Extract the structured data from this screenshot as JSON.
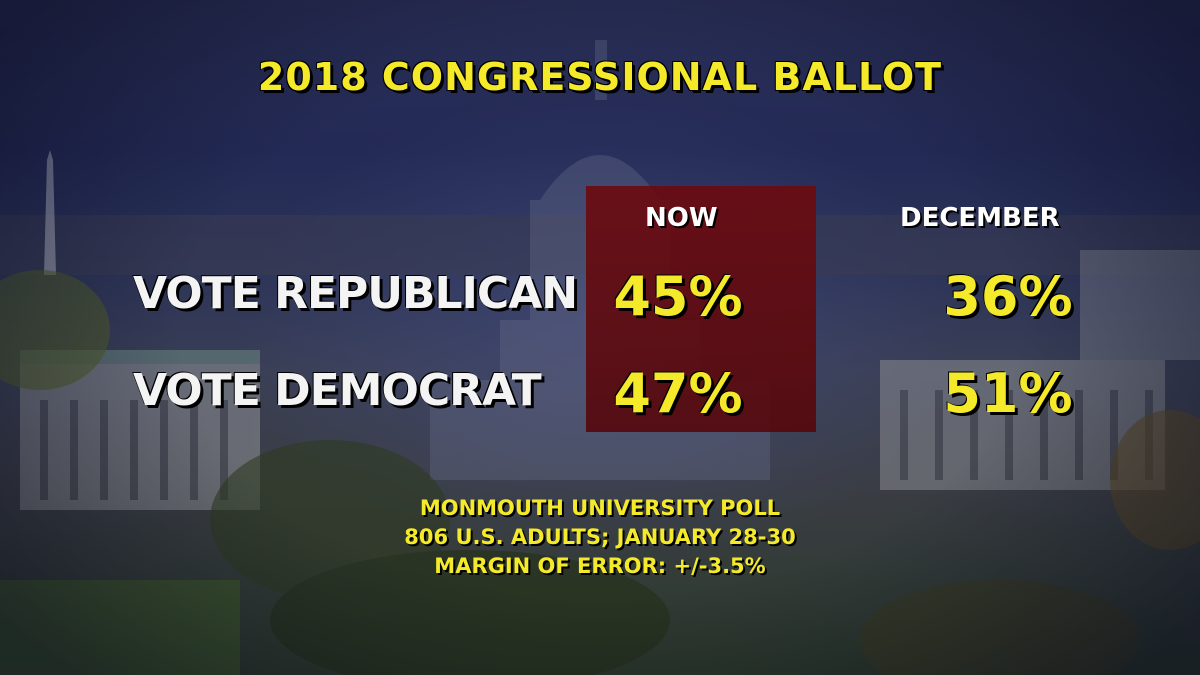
{
  "chart_data": {
    "type": "table",
    "title": "2018 CONGRESSIONAL BALLOT",
    "columns": [
      "NOW",
      "DECEMBER"
    ],
    "rows": [
      {
        "label": "VOTE REPUBLICAN",
        "values": [
          "45%",
          "36%"
        ]
      },
      {
        "label": "VOTE DEMOCRAT",
        "values": [
          "47%",
          "51%"
        ]
      }
    ],
    "highlighted_column": "NOW",
    "source": [
      "MONMOUTH UNIVERSITY POLL",
      "806 U.S. ADULTS; JANUARY 28-30",
      "MARGIN OF ERROR: +/-3.5%"
    ]
  },
  "colors": {
    "accent_text": "#f4ea2a",
    "highlight": "#6d0a0f",
    "label_text": "#f4f4f4"
  }
}
